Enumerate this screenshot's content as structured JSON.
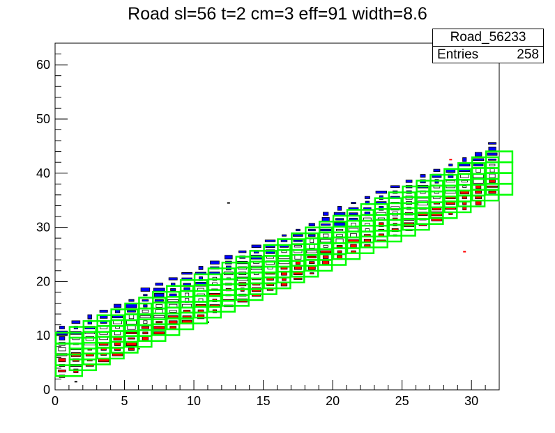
{
  "title": "Road sl=56 t=2 cm=3 eff=91 width=8.6",
  "stats": {
    "name": "Road_56233",
    "entries_label": "Entries",
    "entries_value": "258"
  },
  "chart_data": {
    "type": "heatmap",
    "xlim": [
      0,
      32
    ],
    "ylim": [
      0,
      64
    ],
    "x_ticks": [
      0,
      5,
      10,
      15,
      20,
      25,
      30
    ],
    "y_ticks": [
      0,
      10,
      20,
      30,
      40,
      50,
      60
    ],
    "grid": false,
    "bin_width_x": 1,
    "road": {
      "slope": 1.08,
      "intercept_low": 2,
      "intercept_high": 10,
      "box_height": 2
    },
    "colors": {
      "road": "#00ff00",
      "upper": "#0000ff",
      "middle": "#ffffff",
      "lower": "#ff0000",
      "axis": "#000000"
    }
  }
}
